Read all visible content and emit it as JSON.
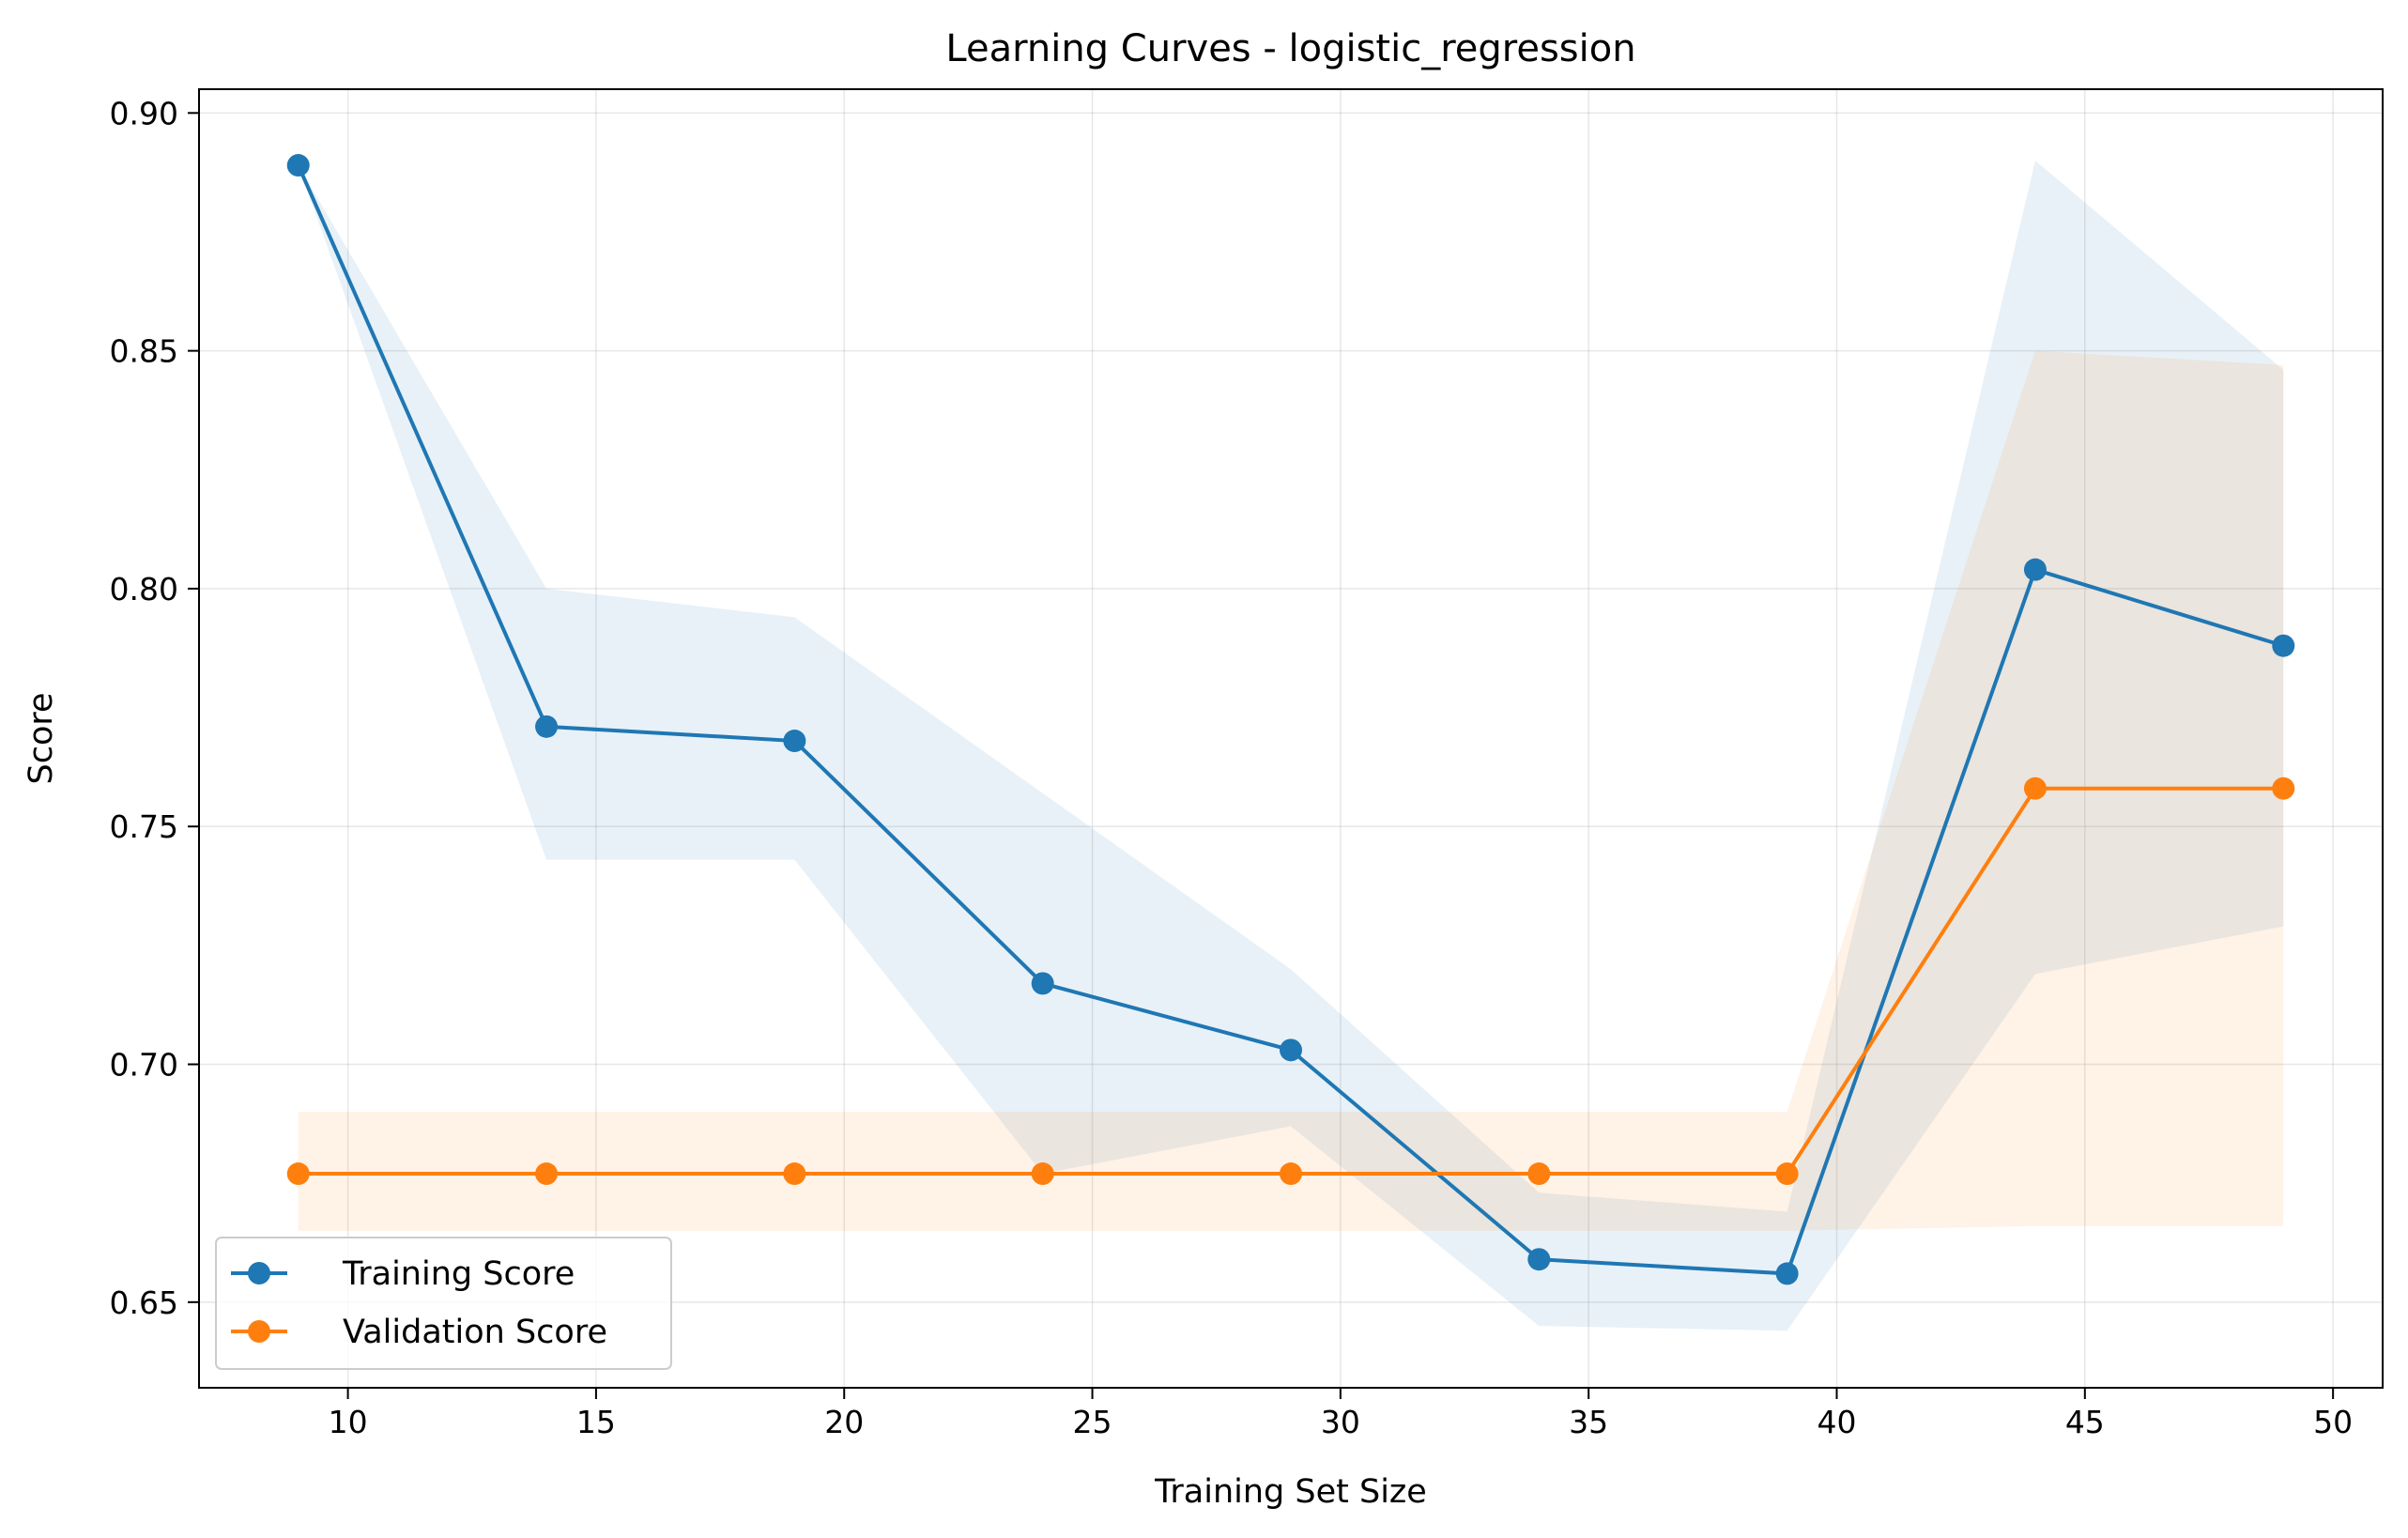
{
  "chart_data": {
    "type": "line",
    "title": "Learning Curves - logistic_regression",
    "xlabel": "Training Set Size",
    "ylabel": "Score",
    "xlim": [
      7,
      51
    ],
    "ylim": [
      0.632,
      0.905
    ],
    "xticks": [
      10,
      15,
      20,
      25,
      30,
      35,
      40,
      45,
      50
    ],
    "yticks": [
      0.65,
      0.7,
      0.75,
      0.8,
      0.85,
      0.9
    ],
    "ytick_labels": [
      "0.65",
      "0.70",
      "0.75",
      "0.80",
      "0.85",
      "0.90"
    ],
    "grid": true,
    "legend_position": "lower-left",
    "x": [
      9,
      14,
      19,
      24,
      29,
      34,
      39,
      44,
      49
    ],
    "series": [
      {
        "name": "Training Score",
        "color": "#1f77b4",
        "marker": "circle",
        "values": [
          0.889,
          0.771,
          0.768,
          0.717,
          0.703,
          0.659,
          0.656,
          0.804,
          0.788
        ],
        "band_upper": [
          0.889,
          0.8,
          0.794,
          0.757,
          0.72,
          0.673,
          0.669,
          0.89,
          0.846
        ],
        "band_lower": [
          0.889,
          0.743,
          0.743,
          0.677,
          0.687,
          0.645,
          0.644,
          0.719,
          0.729
        ]
      },
      {
        "name": "Validation Score",
        "color": "#ff7f0e",
        "marker": "circle",
        "values": [
          0.677,
          0.677,
          0.677,
          0.677,
          0.677,
          0.677,
          0.677,
          0.758,
          0.758
        ],
        "band_upper": [
          0.69,
          0.69,
          0.69,
          0.69,
          0.69,
          0.69,
          0.69,
          0.85,
          0.847
        ],
        "band_lower": [
          0.665,
          0.665,
          0.665,
          0.665,
          0.665,
          0.665,
          0.665,
          0.666,
          0.666
        ]
      }
    ]
  }
}
